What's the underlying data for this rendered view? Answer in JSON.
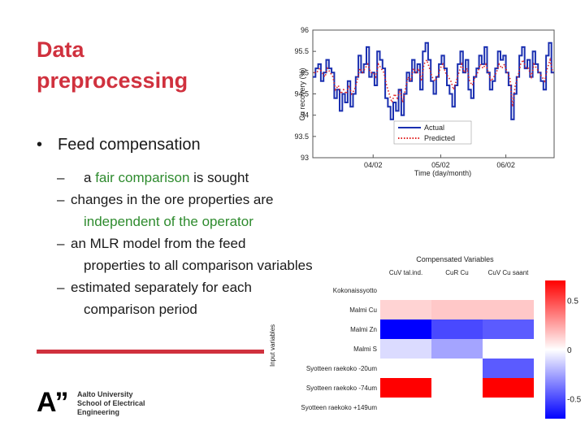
{
  "slide": {
    "title_line1": "Data",
    "title_line2": "preprocessing",
    "bullet": "Feed compensation",
    "sub1_pre": "a ",
    "sub1_green": "fair comparison",
    "sub1_post": " is sought",
    "sub2_line1": "changes in the ore properties are",
    "sub2_line2": "independent of the operator",
    "sub3_line1": "an MLR model from the feed",
    "sub3_line2": "properties to all comparison variables",
    "sub4_line1": "estimated separately for each",
    "sub4_line2": "comparison period",
    "dash": "–",
    "dot": "•"
  },
  "logo": {
    "mark": "A”",
    "line1": "Aalto University",
    "line2": "School of Electrical",
    "line3": "Engineering"
  },
  "colors": {
    "accent": "#d0313e",
    "green": "#2e8b2e",
    "actual": "#1a2fb0",
    "predicted": "#e02020"
  },
  "chart_data": [
    {
      "type": "line",
      "title": "",
      "xlabel": "Time (day/month)",
      "ylabel": "Cu recovery (%)",
      "ylim": [
        93,
        96
      ],
      "yticks": [
        "93",
        "93.5",
        "94",
        "94.5",
        "95",
        "95.5",
        "96"
      ],
      "xticks": [
        "04/02",
        "05/02",
        "06/02"
      ],
      "legend": {
        "placement": "bottom-right",
        "entries": [
          "Actual",
          "Predicted"
        ]
      },
      "series": [
        {
          "name": "Actual",
          "style": "solid",
          "color": "#1a2fb0",
          "values": [
            94.9,
            95.1,
            95.2,
            94.8,
            95.0,
            95.3,
            95.1,
            95.0,
            94.4,
            94.6,
            94.1,
            94.5,
            94.3,
            94.8,
            94.2,
            94.5,
            94.9,
            95.4,
            95.0,
            95.2,
            95.6,
            94.9,
            95.0,
            94.7,
            95.5,
            95.3,
            95.1,
            94.4,
            94.2,
            93.9,
            94.3,
            94.1,
            94.6,
            94.0,
            94.5,
            95.0,
            94.8,
            95.3,
            95.0,
            95.2,
            94.6,
            95.5,
            95.7,
            95.3,
            94.8,
            94.5,
            94.9,
            95.2,
            95.4,
            95.1,
            94.7,
            94.5,
            94.2,
            94.7,
            95.2,
            95.5,
            95.0,
            95.3,
            94.6,
            94.4,
            94.9,
            95.1,
            95.4,
            95.2,
            95.6,
            95.0,
            94.6,
            94.8,
            95.1,
            95.5,
            95.3,
            95.4,
            95.0,
            94.7,
            93.9,
            94.5,
            94.9,
            95.4,
            95.6,
            95.1,
            95.3,
            94.9,
            95.5,
            95.2,
            95.0,
            94.8,
            94.6,
            95.4,
            95.7,
            95.0
          ]
        },
        {
          "name": "Predicted",
          "style": "dotted",
          "color": "#e02020",
          "values": [
            95.0,
            95.0,
            95.1,
            95.0,
            94.9,
            95.1,
            95.0,
            94.9,
            94.6,
            94.7,
            94.5,
            94.6,
            94.5,
            94.7,
            94.5,
            94.6,
            94.8,
            95.1,
            95.0,
            95.1,
            95.2,
            95.0,
            95.0,
            94.9,
            95.2,
            95.1,
            95.0,
            94.7,
            94.5,
            94.3,
            94.5,
            94.4,
            94.6,
            94.3,
            94.6,
            94.9,
            94.8,
            95.1,
            95.0,
            95.1,
            94.8,
            95.2,
            95.3,
            95.1,
            94.9,
            94.8,
            94.9,
            95.1,
            95.2,
            95.0,
            94.9,
            94.8,
            94.6,
            94.8,
            95.0,
            95.2,
            95.0,
            95.1,
            94.8,
            94.7,
            94.9,
            95.0,
            95.2,
            95.1,
            95.2,
            95.0,
            94.8,
            94.9,
            95.0,
            95.2,
            95.1,
            95.2,
            95.0,
            94.9,
            94.2,
            94.7,
            94.9,
            95.2,
            95.3,
            95.1,
            95.1,
            94.9,
            95.2,
            95.1,
            95.0,
            94.9,
            94.8,
            95.1,
            95.3,
            95.0
          ]
        }
      ]
    },
    {
      "type": "heatmap",
      "title": "Compensated Variables",
      "ylabel": "Input variables",
      "columns": [
        "CuV tal.ind.",
        "CuR Cu",
        "CuV Cu saant"
      ],
      "rows": [
        "Kokonaissyotto",
        "Malmi Cu",
        "Malmi Zn",
        "Malmi S",
        "Syotteen raekoko -20um",
        "Syotteen raekoko -74um",
        "Syotteen raekoko +149um"
      ],
      "values": [
        [
          0.0,
          0.0,
          0.0
        ],
        [
          0.12,
          0.15,
          0.15
        ],
        [
          -0.85,
          -0.5,
          -0.45
        ],
        [
          -0.1,
          -0.25,
          0.0
        ],
        [
          0.0,
          0.0,
          -0.45
        ],
        [
          0.8,
          0.0,
          0.75
        ],
        [
          0.0,
          0.0,
          0.0
        ]
      ],
      "colorbar": {
        "range": [
          -0.7,
          0.7
        ],
        "ticks": [
          "0.5",
          "0",
          "-0.5"
        ]
      }
    }
  ]
}
